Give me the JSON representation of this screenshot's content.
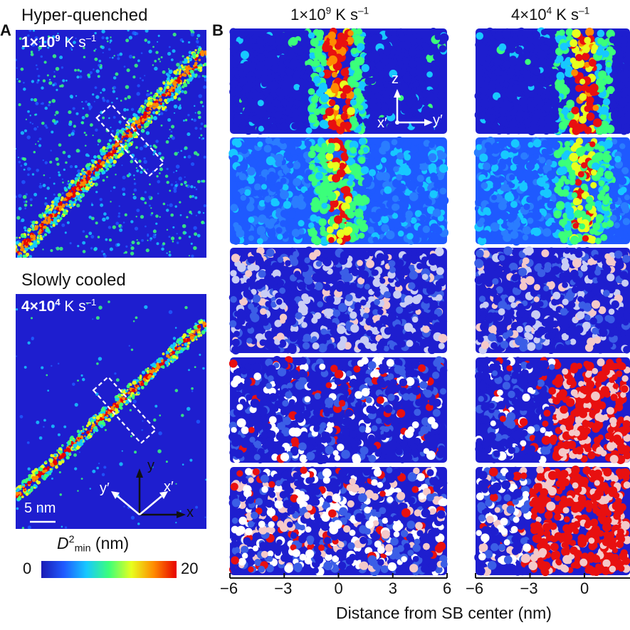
{
  "panels": {
    "A": {
      "letter": "A",
      "top": {
        "title": "Hyper-quenched",
        "rate_base": "1×10",
        "rate_exp": "9",
        "rate_unit": " K s",
        "rate_unit_exp": "–1"
      },
      "bottom": {
        "title": "Slowly cooled",
        "rate_base": "4×10",
        "rate_exp": "4",
        "rate_unit": " K s",
        "rate_unit_exp": "–1",
        "axes": {
          "y": "y",
          "x": "x",
          "x_prime": "x′",
          "y_prime": "y′"
        },
        "scale_bar": "5 nm"
      },
      "colorbar": {
        "label_main": "D",
        "label_sup": "2",
        "label_sub": "min",
        "label_unit": " (nm)",
        "min": "0",
        "max": "20",
        "colors": [
          "#1a1ab4",
          "#1f5aff",
          "#17c8ff",
          "#3bff7a",
          "#e8ff1e",
          "#ff8a00",
          "#e80000"
        ]
      }
    },
    "B": {
      "letter": "B",
      "columns": [
        {
          "base": "1×10",
          "exp": "9",
          "unit": " K s",
          "unit_exp": "–1"
        },
        {
          "base": "4×10",
          "exp": "4",
          "unit": " K s",
          "unit_exp": "–1"
        }
      ],
      "inset_axes": {
        "z": "z",
        "x_prime": "x′",
        "y_prime": "y′"
      },
      "x_ticks_left": [
        "−6",
        "−3",
        "0",
        "3",
        "6"
      ],
      "x_ticks_right": [
        "−6",
        "−3",
        "0"
      ],
      "x_axis_title": "Distance from SB center (nm)",
      "colors": {
        "background_blue": "#1e1ecf",
        "hot_red": "#e81010",
        "light_pink": "#f4c9c9",
        "mid_blue": "#3b5ee6"
      }
    }
  }
}
